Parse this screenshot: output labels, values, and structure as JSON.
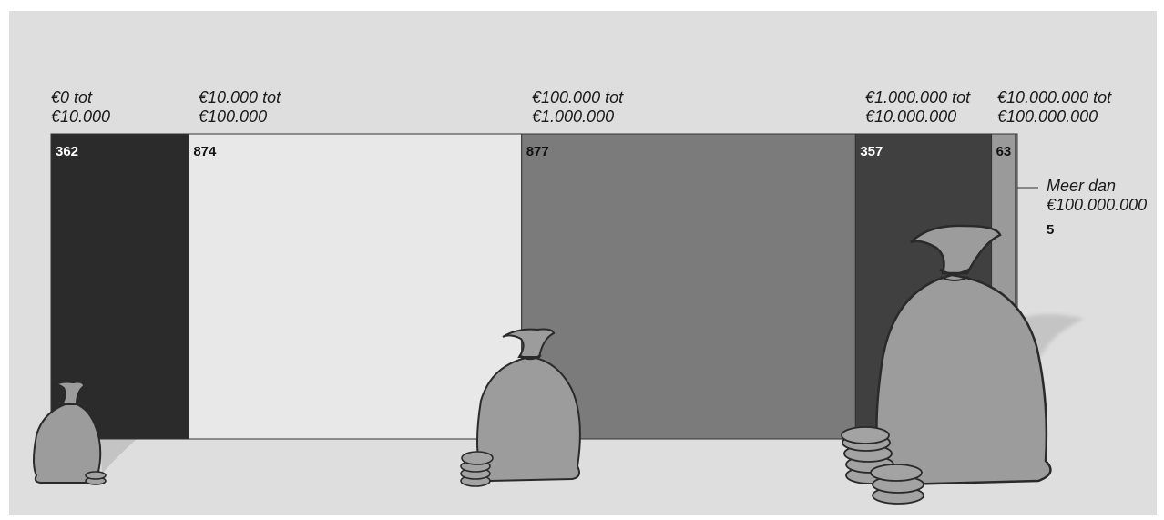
{
  "chart_data": {
    "type": "bar",
    "orientation": "stacked-horizontal",
    "categories": [
      {
        "line1": "€0 tot",
        "line2": "€10.000"
      },
      {
        "line1": "€10.000 tot",
        "line2": "€100.000"
      },
      {
        "line1": "€100.000 tot",
        "line2": "€1.000.000"
      },
      {
        "line1": "€1.000.000 tot",
        "line2": "€10.000.000"
      },
      {
        "line1": "€10.000.000 tot",
        "line2": "€100.000.000"
      },
      {
        "line1": "Meer dan",
        "line2": "€100.000.000"
      }
    ],
    "values": [
      362,
      874,
      877,
      357,
      63,
      5
    ],
    "colors": [
      "#2b2b2b",
      "#e8e8e8",
      "#7b7b7b",
      "#404040",
      "#9a9a9a",
      "#9a9a9a"
    ],
    "label_colors": [
      "#ffffff",
      "#111111",
      "#111111",
      "#ffffff",
      "#111111",
      "#111111"
    ]
  }
}
